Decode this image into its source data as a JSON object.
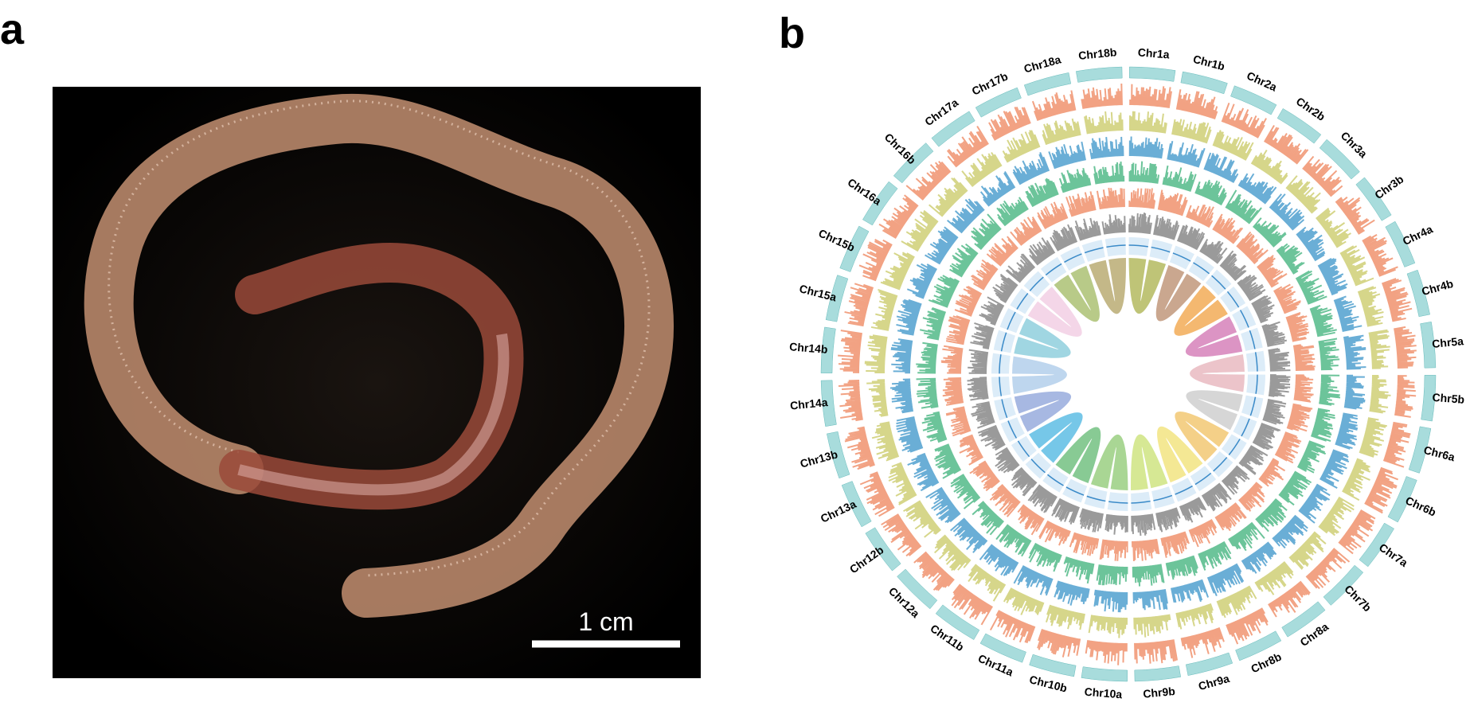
{
  "panel_a": {
    "label": "a",
    "scale_bar": "1 cm"
  },
  "panel_b": {
    "label": "b",
    "chromosomes": [
      "Chr1a",
      "Chr1b",
      "Chr2a",
      "Chr2b",
      "Chr3a",
      "Chr3b",
      "Chr4a",
      "Chr4b",
      "Chr5a",
      "Chr5b",
      "Chr6a",
      "Chr6b",
      "Chr7a",
      "Chr7b",
      "Chr8a",
      "Chr8b",
      "Chr9a",
      "Chr9b",
      "Chr10a",
      "Chr10b",
      "Chr11a",
      "Chr11b",
      "Chr12a",
      "Chr12b",
      "Chr13a",
      "Chr13b",
      "Chr14a",
      "Chr14b",
      "Chr15a",
      "Chr15b",
      "Chr16a",
      "Chr16b",
      "Chr17a",
      "Chr17b",
      "Chr18a",
      "Chr18b"
    ]
  }
}
